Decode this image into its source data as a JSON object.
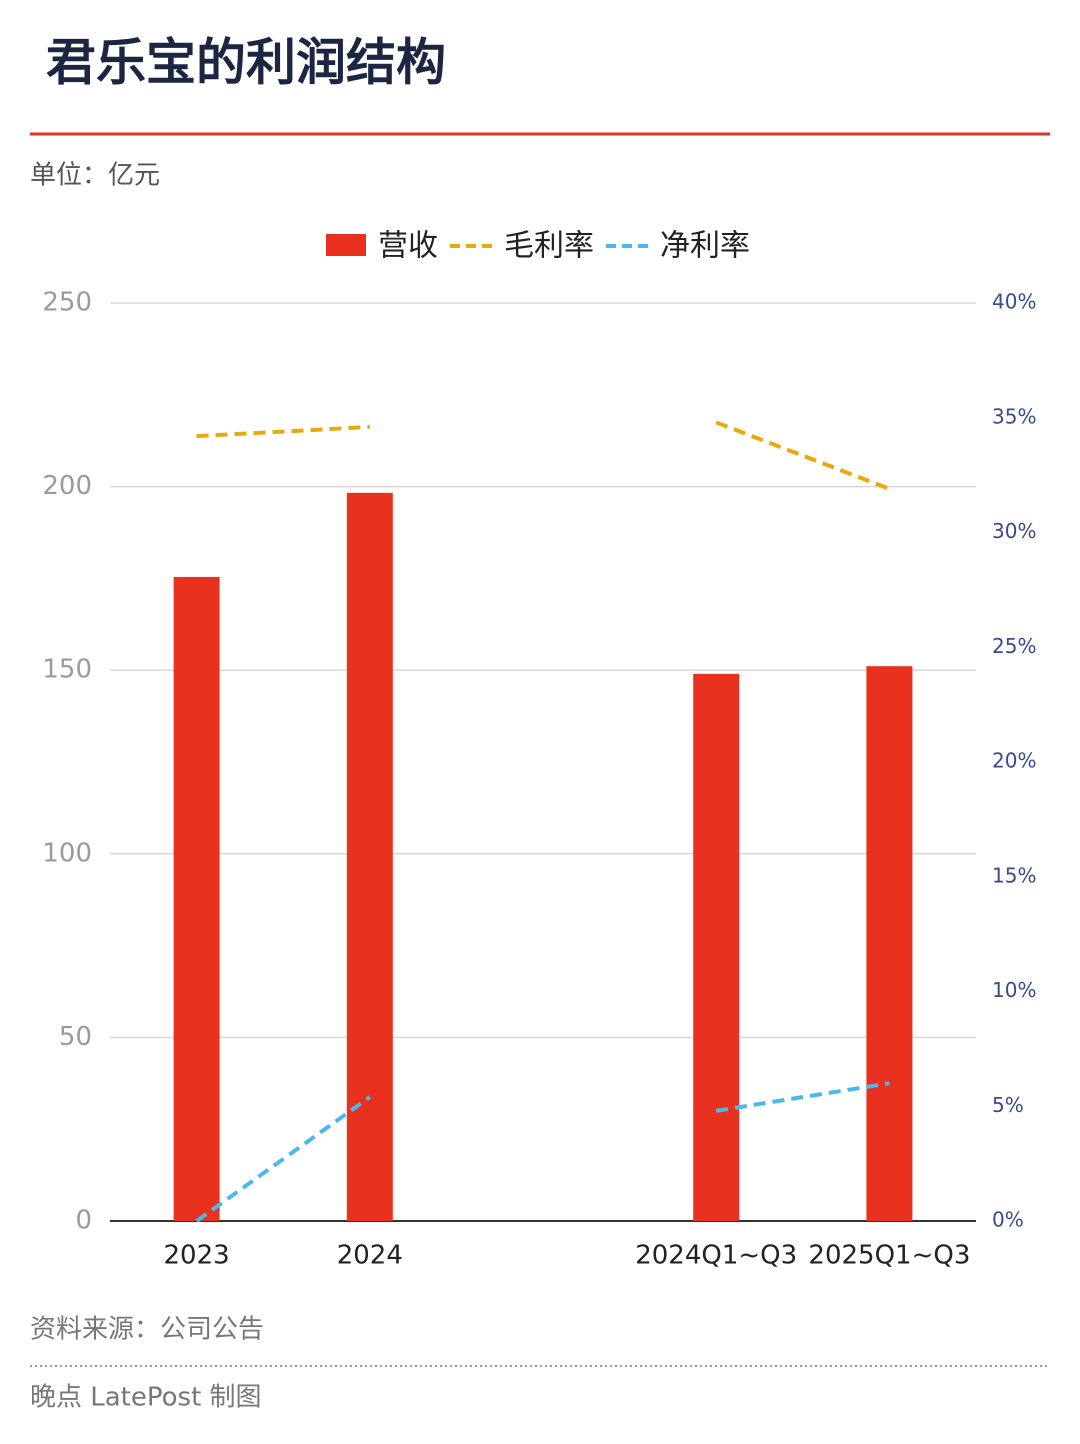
{
  "chart_data": {
    "type": "bar-line",
    "title": "君乐宝的利润结构",
    "subtitle": "单位：亿元",
    "source": "资料来源：公司公告",
    "credit": "晚点 LatePost 制图",
    "categories": [
      "2023",
      "2024",
      null,
      "2024Q1~Q3",
      "2025Q1~Q3"
    ],
    "series": [
      {
        "name": "营收",
        "type": "bar",
        "color": "#e8321f",
        "values": [
          175.4,
          198.3,
          null,
          149.0,
          151.1
        ]
      },
      {
        "name": "毛利率",
        "type": "line",
        "axis": "y2",
        "color": "#e8a90c",
        "values": [
          34.2,
          34.6,
          null,
          34.8,
          31.9
        ]
      },
      {
        "name": "净利率",
        "type": "line",
        "axis": "y2",
        "color": "#4ab8ee",
        "values": [
          0.0,
          5.4,
          null,
          4.8,
          6.0
        ]
      }
    ],
    "ylim": [
      0,
      250
    ],
    "yticks": [
      0,
      50,
      100,
      150,
      200,
      250
    ],
    "y2lim": [
      0,
      40
    ],
    "y2ticks": [
      {
        "value": 0,
        "label": "0%"
      },
      {
        "value": 5,
        "label": "5%"
      },
      {
        "value": 10,
        "label": "10%"
      },
      {
        "value": 15,
        "label": "15%"
      },
      {
        "value": 20,
        "label": "20%"
      },
      {
        "value": 25,
        "label": "25%"
      },
      {
        "value": 30,
        "label": "30%"
      },
      {
        "value": 35,
        "label": "35%"
      },
      {
        "value": 40,
        "label": "40%"
      }
    ],
    "grid": true
  }
}
